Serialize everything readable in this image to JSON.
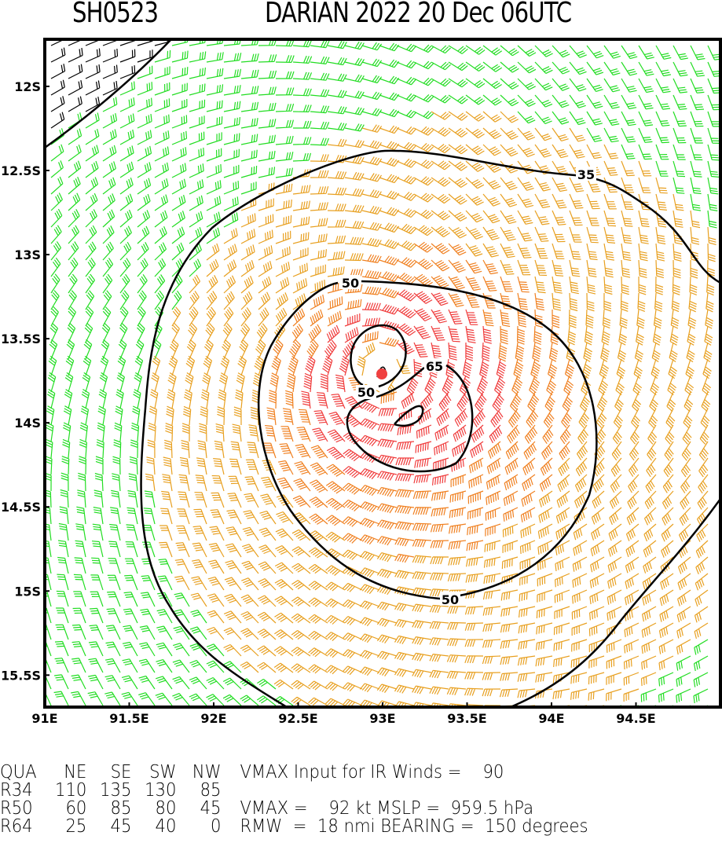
{
  "header": {
    "storm_id": "SH0523",
    "storm_title": "DARIAN 2022 20 Dec 06UTC"
  },
  "chart_data": {
    "type": "wind-barb-map",
    "x_ticks": [
      "91E",
      "91.5E",
      "92E",
      "92.5E",
      "93E",
      "93.5E",
      "94E",
      "94.5E"
    ],
    "y_ticks": [
      "12S",
      "12.5S",
      "13S",
      "13.5S",
      "14S",
      "14.5S",
      "15S",
      "15.5S"
    ],
    "lon_range": [
      91,
      95
    ],
    "lat_range": [
      -11.72,
      -15.69
    ],
    "center": {
      "lon": 93.0,
      "lat": -13.7
    },
    "contour_labels": [
      "35",
      "50",
      "50",
      "50",
      "65"
    ],
    "speed_colors": {
      "below_34": "#000000",
      "34_range": "#22dd22",
      "50_range": "#e8a020",
      "64_range": "#f08020",
      "above_64": "#f03c3c"
    },
    "center_marker_color": "#f04040"
  },
  "info_table": {
    "headers": [
      "QUA",
      "NE",
      "SE",
      "SW",
      "NW"
    ],
    "rows": [
      [
        "R34",
        "110",
        "135",
        "130",
        "85"
      ],
      [
        "R50",
        "60",
        "85",
        "80",
        "45"
      ],
      [
        "R64",
        "25",
        "45",
        "40",
        "0"
      ]
    ],
    "vmax_input": "VMAX Input for IR Winds =    90",
    "vmax_mslp": "VMAX =    92 kt MSLP =  959.5 hPa",
    "rmw_bearing": "RMW  =  18 nmi BEARING =  150 degrees"
  }
}
